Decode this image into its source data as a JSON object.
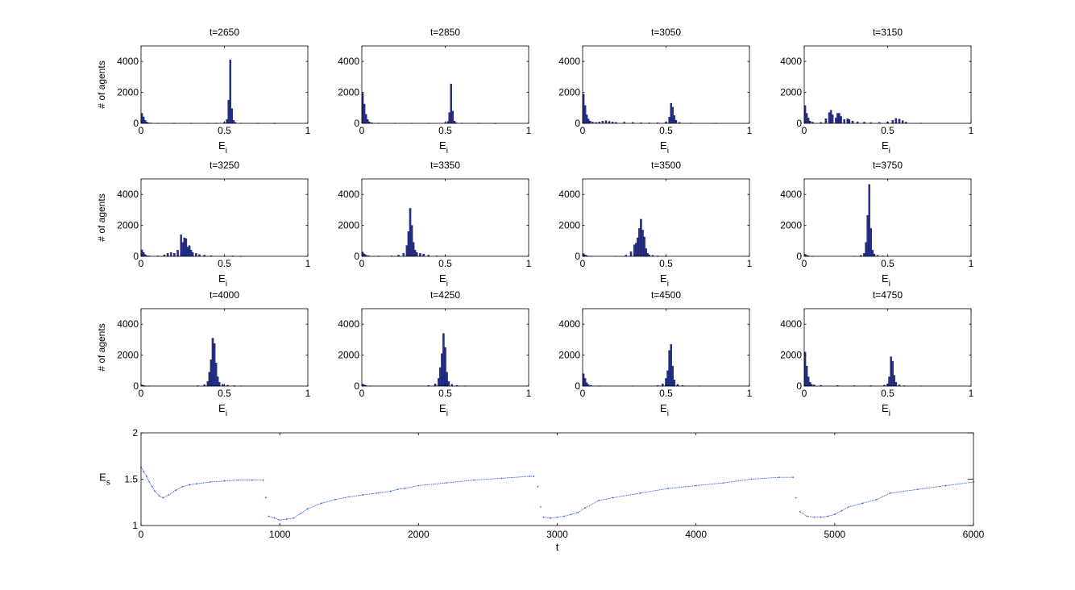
{
  "colors": {
    "bar_fill": "#27318a",
    "bar_edge": "#0a0f4a",
    "trace": "#4169e1",
    "axes": "#000000"
  },
  "chart_data": [
    {
      "type": "bar",
      "title": "t=2650",
      "xlabel": "E_i",
      "ylabel": "# of agents",
      "xlim": [
        0,
        1
      ],
      "ylim": [
        0,
        5000
      ],
      "xticks": [
        0,
        0.5,
        1
      ],
      "yticks": [
        0,
        2000,
        4000
      ],
      "bins": [
        [
          0.005,
          650
        ],
        [
          0.015,
          420
        ],
        [
          0.025,
          200
        ],
        [
          0.035,
          80
        ],
        [
          0.045,
          40
        ],
        [
          0.06,
          25
        ],
        [
          0.1,
          15
        ],
        [
          0.2,
          10
        ],
        [
          0.3,
          10
        ],
        [
          0.4,
          15
        ],
        [
          0.45,
          20
        ],
        [
          0.5,
          60
        ],
        [
          0.515,
          250
        ],
        [
          0.525,
          1500
        ],
        [
          0.535,
          4100
        ],
        [
          0.545,
          950
        ],
        [
          0.555,
          200
        ],
        [
          0.565,
          60
        ],
        [
          0.6,
          20
        ],
        [
          0.7,
          10
        ],
        [
          0.8,
          5
        ]
      ]
    },
    {
      "type": "bar",
      "title": "t=2850",
      "xlabel": "E_i",
      "ylabel": "",
      "xlim": [
        0,
        1
      ],
      "ylim": [
        0,
        5000
      ],
      "xticks": [
        0,
        0.5,
        1
      ],
      "yticks": [
        0,
        2000,
        4000
      ],
      "bins": [
        [
          0.005,
          1950
        ],
        [
          0.015,
          1250
        ],
        [
          0.025,
          580
        ],
        [
          0.035,
          250
        ],
        [
          0.045,
          100
        ],
        [
          0.06,
          40
        ],
        [
          0.1,
          20
        ],
        [
          0.2,
          15
        ],
        [
          0.3,
          15
        ],
        [
          0.4,
          15
        ],
        [
          0.5,
          30
        ],
        [
          0.515,
          120
        ],
        [
          0.525,
          700
        ],
        [
          0.535,
          2550
        ],
        [
          0.545,
          800
        ],
        [
          0.555,
          150
        ],
        [
          0.565,
          50
        ],
        [
          0.6,
          20
        ],
        [
          0.7,
          10
        ],
        [
          0.8,
          5
        ]
      ]
    },
    {
      "type": "bar",
      "title": "t=3050",
      "xlabel": "E_i",
      "ylabel": "",
      "xlim": [
        0,
        1
      ],
      "ylim": [
        0,
        5000
      ],
      "xticks": [
        0,
        0.5,
        1
      ],
      "yticks": [
        0,
        2000,
        4000
      ],
      "bins": [
        [
          0.005,
          1900
        ],
        [
          0.015,
          1150
        ],
        [
          0.025,
          550
        ],
        [
          0.035,
          280
        ],
        [
          0.045,
          150
        ],
        [
          0.06,
          80
        ],
        [
          0.08,
          60
        ],
        [
          0.1,
          90
        ],
        [
          0.12,
          140
        ],
        [
          0.14,
          170
        ],
        [
          0.16,
          130
        ],
        [
          0.18,
          90
        ],
        [
          0.2,
          70
        ],
        [
          0.25,
          80
        ],
        [
          0.3,
          60
        ],
        [
          0.35,
          40
        ],
        [
          0.4,
          30
        ],
        [
          0.45,
          40
        ],
        [
          0.5,
          80
        ],
        [
          0.52,
          400
        ],
        [
          0.53,
          1300
        ],
        [
          0.54,
          1050
        ],
        [
          0.55,
          500
        ],
        [
          0.56,
          200
        ],
        [
          0.58,
          60
        ],
        [
          0.65,
          20
        ],
        [
          0.8,
          10
        ]
      ]
    },
    {
      "type": "bar",
      "title": "t=3150",
      "xlabel": "E_i",
      "ylabel": "",
      "xlim": [
        0,
        1
      ],
      "ylim": [
        0,
        5000
      ],
      "xticks": [
        0,
        0.5,
        1
      ],
      "yticks": [
        0,
        2000,
        4000
      ],
      "bins": [
        [
          0.005,
          1150
        ],
        [
          0.015,
          650
        ],
        [
          0.025,
          350
        ],
        [
          0.035,
          150
        ],
        [
          0.05,
          80
        ],
        [
          0.1,
          60
        ],
        [
          0.13,
          300
        ],
        [
          0.15,
          700
        ],
        [
          0.16,
          850
        ],
        [
          0.17,
          550
        ],
        [
          0.19,
          350
        ],
        [
          0.2,
          650
        ],
        [
          0.21,
          650
        ],
        [
          0.22,
          450
        ],
        [
          0.24,
          250
        ],
        [
          0.26,
          300
        ],
        [
          0.27,
          250
        ],
        [
          0.29,
          150
        ],
        [
          0.32,
          100
        ],
        [
          0.36,
          80
        ],
        [
          0.4,
          50
        ],
        [
          0.45,
          60
        ],
        [
          0.5,
          80
        ],
        [
          0.53,
          200
        ],
        [
          0.55,
          320
        ],
        [
          0.57,
          280
        ],
        [
          0.59,
          180
        ],
        [
          0.61,
          80
        ],
        [
          0.7,
          20
        ]
      ]
    },
    {
      "type": "bar",
      "title": "t=3250",
      "xlabel": "E_i",
      "ylabel": "# of agents",
      "xlim": [
        0,
        1
      ],
      "ylim": [
        0,
        5000
      ],
      "xticks": [
        0,
        0.5,
        1
      ],
      "yticks": [
        0,
        2000,
        4000
      ],
      "bins": [
        [
          0.005,
          420
        ],
        [
          0.015,
          260
        ],
        [
          0.025,
          120
        ],
        [
          0.035,
          50
        ],
        [
          0.05,
          30
        ],
        [
          0.1,
          30
        ],
        [
          0.14,
          100
        ],
        [
          0.16,
          200
        ],
        [
          0.18,
          250
        ],
        [
          0.2,
          200
        ],
        [
          0.22,
          400
        ],
        [
          0.24,
          1400
        ],
        [
          0.25,
          900
        ],
        [
          0.26,
          1200
        ],
        [
          0.27,
          1150
        ],
        [
          0.28,
          600
        ],
        [
          0.29,
          700
        ],
        [
          0.3,
          400
        ],
        [
          0.31,
          250
        ],
        [
          0.33,
          200
        ],
        [
          0.35,
          120
        ],
        [
          0.38,
          80
        ],
        [
          0.42,
          40
        ],
        [
          0.5,
          20
        ],
        [
          0.55,
          30
        ],
        [
          0.6,
          10
        ]
      ]
    },
    {
      "type": "bar",
      "title": "t=3350",
      "xlabel": "E_i",
      "ylabel": "",
      "xlim": [
        0,
        1
      ],
      "ylim": [
        0,
        5000
      ],
      "xticks": [
        0,
        0.5,
        1
      ],
      "yticks": [
        0,
        2000,
        4000
      ],
      "bins": [
        [
          0.005,
          280
        ],
        [
          0.015,
          160
        ],
        [
          0.025,
          80
        ],
        [
          0.04,
          40
        ],
        [
          0.1,
          25
        ],
        [
          0.18,
          30
        ],
        [
          0.22,
          80
        ],
        [
          0.25,
          200
        ],
        [
          0.27,
          700
        ],
        [
          0.28,
          1600
        ],
        [
          0.29,
          3100
        ],
        [
          0.3,
          2000
        ],
        [
          0.31,
          900
        ],
        [
          0.32,
          400
        ],
        [
          0.33,
          250
        ],
        [
          0.35,
          200
        ],
        [
          0.37,
          150
        ],
        [
          0.4,
          80
        ],
        [
          0.45,
          30
        ],
        [
          0.5,
          15
        ]
      ]
    },
    {
      "type": "bar",
      "title": "t=3500",
      "xlabel": "E_i",
      "ylabel": "",
      "xlim": [
        0,
        1
      ],
      "ylim": [
        0,
        5000
      ],
      "xticks": [
        0,
        0.5,
        1
      ],
      "yticks": [
        0,
        2000,
        4000
      ],
      "bins": [
        [
          0.005,
          180
        ],
        [
          0.015,
          100
        ],
        [
          0.025,
          50
        ],
        [
          0.05,
          20
        ],
        [
          0.2,
          20
        ],
        [
          0.26,
          80
        ],
        [
          0.29,
          300
        ],
        [
          0.31,
          750
        ],
        [
          0.32,
          850
        ],
        [
          0.33,
          1200
        ],
        [
          0.34,
          1800
        ],
        [
          0.35,
          2400
        ],
        [
          0.36,
          1700
        ],
        [
          0.37,
          1250
        ],
        [
          0.38,
          500
        ],
        [
          0.39,
          200
        ],
        [
          0.4,
          100
        ],
        [
          0.42,
          60
        ],
        [
          0.45,
          30
        ],
        [
          0.5,
          15
        ]
      ]
    },
    {
      "type": "bar",
      "title": "t=3750",
      "xlabel": "E_i",
      "ylabel": "",
      "xlim": [
        0,
        1
      ],
      "ylim": [
        0,
        5000
      ],
      "xticks": [
        0,
        0.5,
        1
      ],
      "yticks": [
        0,
        2000,
        4000
      ],
      "bins": [
        [
          0.005,
          130
        ],
        [
          0.015,
          70
        ],
        [
          0.025,
          35
        ],
        [
          0.05,
          15
        ],
        [
          0.3,
          20
        ],
        [
          0.34,
          60
        ],
        [
          0.36,
          200
        ],
        [
          0.37,
          900
        ],
        [
          0.38,
          2650
        ],
        [
          0.39,
          4650
        ],
        [
          0.4,
          1800
        ],
        [
          0.41,
          400
        ],
        [
          0.42,
          150
        ],
        [
          0.44,
          70
        ],
        [
          0.47,
          30
        ],
        [
          0.5,
          15
        ]
      ]
    },
    {
      "type": "bar",
      "title": "t=4000",
      "xlabel": "E_i",
      "ylabel": "# of agents",
      "xlim": [
        0,
        1
      ],
      "ylim": [
        0,
        5000
      ],
      "xticks": [
        0,
        0.5,
        1
      ],
      "yticks": [
        0,
        2000,
        4000
      ],
      "bins": [
        [
          0.005,
          80
        ],
        [
          0.015,
          50
        ],
        [
          0.025,
          25
        ],
        [
          0.05,
          15
        ],
        [
          0.34,
          30
        ],
        [
          0.38,
          100
        ],
        [
          0.4,
          300
        ],
        [
          0.41,
          900
        ],
        [
          0.42,
          1700
        ],
        [
          0.43,
          3100
        ],
        [
          0.44,
          2750
        ],
        [
          0.45,
          1500
        ],
        [
          0.46,
          600
        ],
        [
          0.47,
          250
        ],
        [
          0.49,
          120
        ],
        [
          0.52,
          60
        ],
        [
          0.56,
          30
        ],
        [
          0.6,
          15
        ]
      ]
    },
    {
      "type": "bar",
      "title": "t=4250",
      "xlabel": "E_i",
      "ylabel": "",
      "xlim": [
        0,
        1
      ],
      "ylim": [
        0,
        5000
      ],
      "xticks": [
        0,
        0.5,
        1
      ],
      "yticks": [
        0,
        2000,
        4000
      ],
      "bins": [
        [
          0.005,
          130
        ],
        [
          0.015,
          80
        ],
        [
          0.025,
          40
        ],
        [
          0.05,
          15
        ],
        [
          0.4,
          40
        ],
        [
          0.44,
          150
        ],
        [
          0.46,
          500
        ],
        [
          0.47,
          1200
        ],
        [
          0.48,
          2100
        ],
        [
          0.49,
          3400
        ],
        [
          0.5,
          2500
        ],
        [
          0.51,
          900
        ],
        [
          0.52,
          300
        ],
        [
          0.54,
          120
        ],
        [
          0.57,
          50
        ],
        [
          0.62,
          20
        ]
      ]
    },
    {
      "type": "bar",
      "title": "t=4500",
      "xlabel": "E_i",
      "ylabel": "",
      "xlim": [
        0,
        1
      ],
      "ylim": [
        0,
        5000
      ],
      "xticks": [
        0,
        0.5,
        1
      ],
      "yticks": [
        0,
        2000,
        4000
      ],
      "bins": [
        [
          0.005,
          800
        ],
        [
          0.015,
          500
        ],
        [
          0.025,
          220
        ],
        [
          0.035,
          100
        ],
        [
          0.05,
          50
        ],
        [
          0.1,
          20
        ],
        [
          0.3,
          15
        ],
        [
          0.45,
          40
        ],
        [
          0.48,
          150
        ],
        [
          0.5,
          500
        ],
        [
          0.51,
          1000
        ],
        [
          0.52,
          2300
        ],
        [
          0.53,
          2700
        ],
        [
          0.54,
          1300
        ],
        [
          0.55,
          400
        ],
        [
          0.57,
          120
        ],
        [
          0.6,
          40
        ],
        [
          0.7,
          15
        ]
      ]
    },
    {
      "type": "bar",
      "title": "t=4750",
      "xlabel": "E_i",
      "ylabel": "",
      "xlim": [
        0,
        1
      ],
      "ylim": [
        0,
        5000
      ],
      "xticks": [
        0,
        0.5,
        1
      ],
      "yticks": [
        0,
        2000,
        4000
      ],
      "bins": [
        [
          0.005,
          2200
        ],
        [
          0.015,
          1300
        ],
        [
          0.025,
          600
        ],
        [
          0.035,
          250
        ],
        [
          0.045,
          120
        ],
        [
          0.06,
          80
        ],
        [
          0.1,
          50
        ],
        [
          0.2,
          40
        ],
        [
          0.3,
          30
        ],
        [
          0.4,
          30
        ],
        [
          0.48,
          60
        ],
        [
          0.5,
          150
        ],
        [
          0.51,
          600
        ],
        [
          0.52,
          1900
        ],
        [
          0.53,
          1600
        ],
        [
          0.54,
          700
        ],
        [
          0.55,
          250
        ],
        [
          0.57,
          80
        ],
        [
          0.6,
          30
        ],
        [
          0.7,
          15
        ]
      ]
    },
    {
      "type": "scatter",
      "title": "",
      "xlabel": "t",
      "ylabel": "E_s",
      "xlim": [
        0,
        6000
      ],
      "ylim": [
        1,
        2
      ],
      "xticks": [
        0,
        1000,
        2000,
        3000,
        4000,
        5000,
        6000
      ],
      "yticks": [
        1,
        1.5,
        2
      ],
      "x": [
        0,
        20,
        40,
        60,
        80,
        100,
        130,
        160,
        200,
        250,
        300,
        350,
        400,
        500,
        600,
        700,
        800,
        880,
        900,
        920,
        960,
        1000,
        1050,
        1100,
        1150,
        1200,
        1300,
        1400,
        1500,
        1600,
        1700,
        1800,
        1850,
        1900,
        2000,
        2200,
        2400,
        2600,
        2800,
        2830,
        2860,
        2880,
        2900,
        2950,
        3000,
        3050,
        3100,
        3150,
        3200,
        3300,
        3400,
        3600,
        3800,
        4000,
        4200,
        4400,
        4600,
        4700,
        4720,
        4750,
        4800,
        4850,
        4900,
        4950,
        5000,
        5050,
        5100,
        5200,
        5300,
        5400,
        5600,
        5800,
        6000
      ],
      "y": [
        1.63,
        1.58,
        1.53,
        1.47,
        1.42,
        1.37,
        1.32,
        1.3,
        1.33,
        1.38,
        1.42,
        1.44,
        1.45,
        1.47,
        1.48,
        1.49,
        1.49,
        1.49,
        1.3,
        1.1,
        1.08,
        1.06,
        1.07,
        1.08,
        1.13,
        1.18,
        1.24,
        1.28,
        1.31,
        1.33,
        1.35,
        1.37,
        1.39,
        1.4,
        1.43,
        1.46,
        1.49,
        1.51,
        1.53,
        1.53,
        1.42,
        1.2,
        1.09,
        1.08,
        1.09,
        1.1,
        1.12,
        1.14,
        1.19,
        1.27,
        1.3,
        1.35,
        1.4,
        1.43,
        1.46,
        1.5,
        1.52,
        1.52,
        1.3,
        1.15,
        1.1,
        1.09,
        1.09,
        1.1,
        1.12,
        1.16,
        1.2,
        1.24,
        1.28,
        1.35,
        1.39,
        1.43,
        1.47
      ]
    }
  ]
}
